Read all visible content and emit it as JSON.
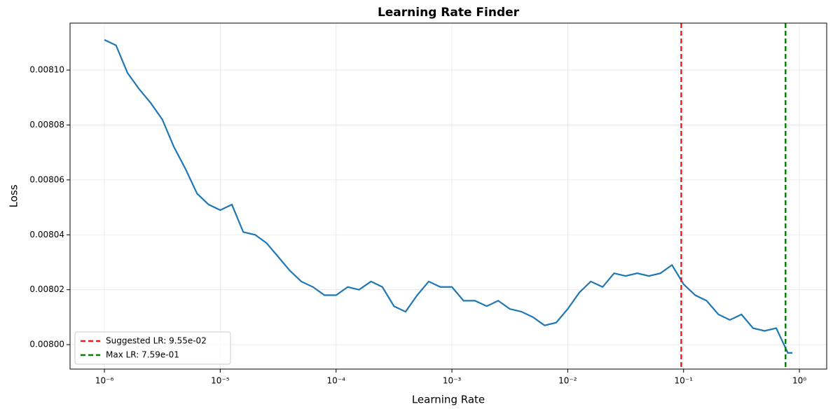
{
  "chart_data": {
    "type": "line",
    "title": "Learning Rate Finder",
    "xlabel": "Learning Rate",
    "ylabel": "Loss",
    "x": [
      1e-06,
      1.26e-06,
      1.58e-06,
      2e-06,
      2.51e-06,
      3.16e-06,
      3.98e-06,
      5.01e-06,
      6.31e-06,
      7.94e-06,
      1e-05,
      1.26e-05,
      1.58e-05,
      2e-05,
      2.51e-05,
      3.16e-05,
      3.98e-05,
      5.01e-05,
      6.31e-05,
      7.94e-05,
      0.0001,
      0.000126,
      0.000158,
      0.0002,
      0.000251,
      0.000316,
      0.000398,
      0.000501,
      0.000631,
      0.000794,
      0.001,
      0.00126,
      0.00158,
      0.002,
      0.00251,
      0.00316,
      0.00398,
      0.00501,
      0.00631,
      0.00794,
      0.01,
      0.0126,
      0.0158,
      0.02,
      0.0251,
      0.0316,
      0.0398,
      0.0501,
      0.0631,
      0.0794,
      0.1,
      0.126,
      0.158,
      0.2,
      0.251,
      0.316,
      0.398,
      0.501,
      0.631,
      0.794,
      0.87
    ],
    "series": [
      {
        "color": "#1f77b4",
        "values": [
          0.008111,
          0.008109,
          0.008099,
          0.008093,
          0.008088,
          0.008082,
          0.008072,
          0.008064,
          0.008055,
          0.008051,
          0.008049,
          0.008051,
          0.008041,
          0.00804,
          0.008037,
          0.008032,
          0.008027,
          0.008023,
          0.008021,
          0.008018,
          0.008018,
          0.008021,
          0.00802,
          0.008023,
          0.008021,
          0.008014,
          0.008012,
          0.008018,
          0.008023,
          0.008021,
          0.008021,
          0.008016,
          0.008016,
          0.008014,
          0.008016,
          0.008013,
          0.008012,
          0.00801,
          0.008007,
          0.008008,
          0.008013,
          0.008019,
          0.008023,
          0.008021,
          0.008026,
          0.008025,
          0.008026,
          0.008025,
          0.008026,
          0.008029,
          0.008022,
          0.008018,
          0.008016,
          0.008011,
          0.008009,
          0.008011,
          0.008006,
          0.008005,
          0.008006,
          0.007997,
          0.007997
        ]
      }
    ],
    "vlines": [
      {
        "name": "Suggested LR: 9.55e-02",
        "value": 0.0955,
        "color": "#e41a1c"
      },
      {
        "name": "Max LR: 7.59e-01",
        "value": 0.759,
        "color": "#008000"
      }
    ],
    "xscale": "log",
    "xlim": [
      5.05e-07,
      1.72
    ],
    "ylim": [
      0.0079911,
      0.0081171
    ],
    "xticks": [
      {
        "value": 1e-06,
        "label": "10⁻⁶"
      },
      {
        "value": 1e-05,
        "label": "10⁻⁵"
      },
      {
        "value": 0.0001,
        "label": "10⁻⁴"
      },
      {
        "value": 0.001,
        "label": "10⁻³"
      },
      {
        "value": 0.01,
        "label": "10⁻²"
      },
      {
        "value": 0.1,
        "label": "10⁻¹"
      },
      {
        "value": 1,
        "label": "10⁰"
      }
    ],
    "yticks": [
      {
        "value": 0.008,
        "label": "0.00800"
      },
      0.00802,
      0.00804,
      0.00806,
      0.00808,
      {
        "value": 0.0081,
        "label": "0.00810"
      }
    ],
    "grid": true,
    "legend": "lower left"
  }
}
